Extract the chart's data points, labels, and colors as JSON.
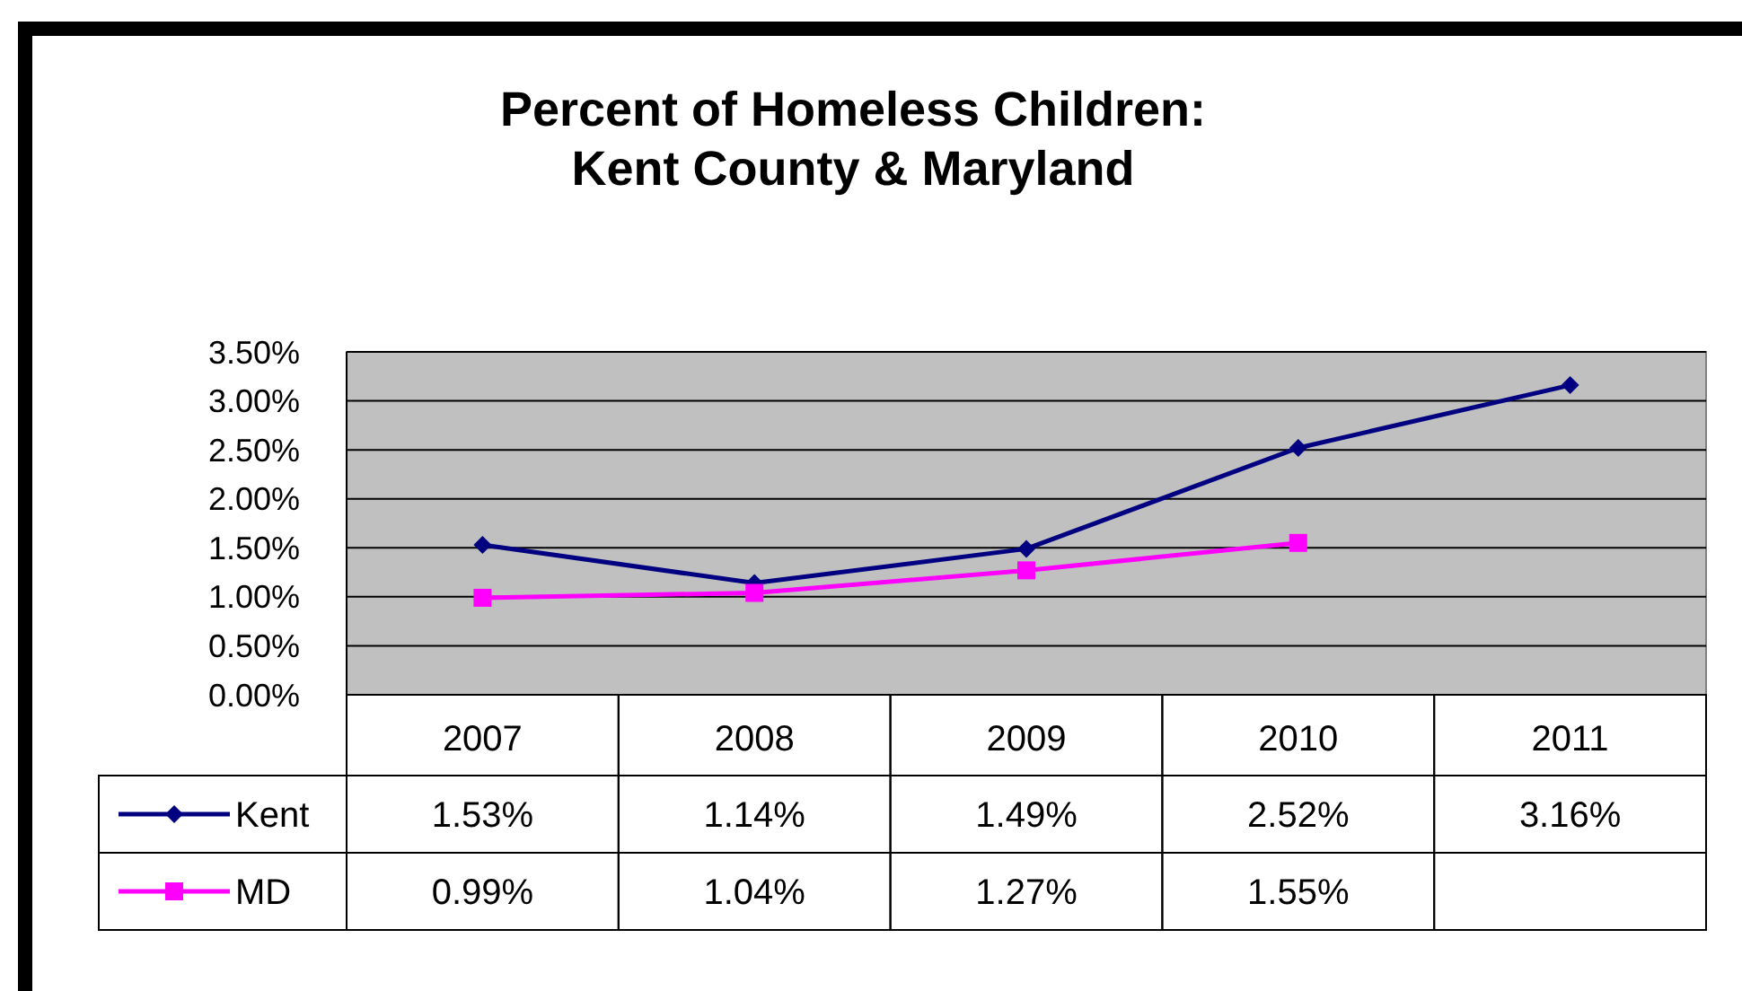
{
  "chart_data": {
    "type": "line",
    "title": "Percent of Homeless Children:\nKent County & Maryland",
    "categories": [
      "2007",
      "2008",
      "2009",
      "2010",
      "2011"
    ],
    "series": [
      {
        "name": "Kent",
        "color": "#000080",
        "marker": "diamond",
        "values": [
          1.53,
          1.14,
          1.49,
          2.52,
          3.16
        ],
        "value_labels": [
          "1.53%",
          "1.14%",
          "1.49%",
          "2.52%",
          "3.16%"
        ]
      },
      {
        "name": "MD",
        "color": "#ff00ff",
        "marker": "square",
        "values": [
          0.99,
          1.04,
          1.27,
          1.55,
          null
        ],
        "value_labels": [
          "0.99%",
          "1.04%",
          "1.27%",
          "1.55%",
          null
        ]
      }
    ],
    "ylim": [
      0,
      3.5
    ],
    "yticks": [
      {
        "value": 0,
        "label": "0.00%"
      },
      {
        "value": 0.5,
        "label": "0.50%"
      },
      {
        "value": 1,
        "label": "1.00%"
      },
      {
        "value": 1.5,
        "label": "1.50%"
      },
      {
        "value": 2,
        "label": "2.00%"
      },
      {
        "value": 2.5,
        "label": "2.50%"
      },
      {
        "value": 3,
        "label": "3.00%"
      },
      {
        "value": 3.5,
        "label": "3.50%"
      }
    ],
    "grid": "y",
    "legend": "bottom left"
  }
}
